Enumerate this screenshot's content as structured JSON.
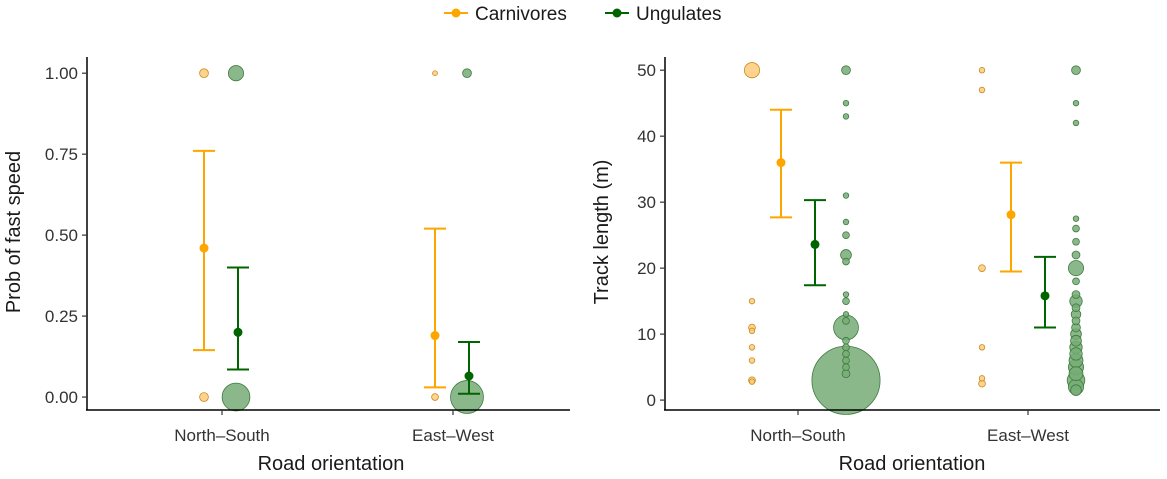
{
  "legend": {
    "position": "top-center",
    "entries": [
      {
        "label": "Carnivores",
        "color": "#FFA500"
      },
      {
        "label": "Ungulates",
        "color": "#006400"
      }
    ]
  },
  "chart_data": [
    {
      "type": "scatter",
      "title": "",
      "xlabel": "Road orientation",
      "ylabel": "Prob of fast speed",
      "categories": [
        "North–South",
        "East–West"
      ],
      "ylim": [
        -0.04,
        1.05
      ],
      "yticks": [
        0,
        0.25,
        0.5,
        0.75,
        1
      ],
      "ytick_labels": [
        "0.00",
        "0.25",
        "0.50",
        "0.75",
        "1.00"
      ],
      "grid": false,
      "series": [
        {
          "name": "Carnivores",
          "color": "#FFA500",
          "estimates": [
            {
              "category": "North–South",
              "mean": 0.46,
              "lower": 0.145,
              "upper": 0.76
            },
            {
              "category": "East–West",
              "mean": 0.19,
              "lower": 0.03,
              "upper": 0.52
            }
          ],
          "raw": [
            {
              "category": "North–South",
              "y": 1,
              "n": 1
            },
            {
              "category": "North–South",
              "y": 0,
              "n": 1
            },
            {
              "category": "East–West",
              "y": 1,
              "n": 0.3
            },
            {
              "category": "East–West",
              "y": 0,
              "n": 0.6
            }
          ]
        },
        {
          "name": "Ungulates",
          "color": "#006400",
          "estimates": [
            {
              "category": "North–South",
              "mean": 0.2,
              "lower": 0.085,
              "upper": 0.4
            },
            {
              "category": "East–West",
              "mean": 0.065,
              "lower": 0.01,
              "upper": 0.17
            }
          ],
          "raw": [
            {
              "category": "North–South",
              "y": 1,
              "n": 3
            },
            {
              "category": "North–South",
              "y": 0,
              "n": 10
            },
            {
              "category": "East–West",
              "y": 1,
              "n": 1
            },
            {
              "category": "East–West",
              "y": 0,
              "n": 14
            }
          ]
        }
      ]
    },
    {
      "type": "scatter",
      "title": "",
      "xlabel": "Road orientation",
      "ylabel": "Track length (m)",
      "categories": [
        "North–South",
        "East–West"
      ],
      "ylim": [
        -1.5,
        52
      ],
      "yticks": [
        0,
        10,
        20,
        30,
        40,
        50
      ],
      "ytick_labels": [
        "0",
        "10",
        "20",
        "30",
        "40",
        "50"
      ],
      "grid": false,
      "series": [
        {
          "name": "Carnivores",
          "color": "#FFA500",
          "estimates": [
            {
              "category": "North–South",
              "mean": 36,
              "lower": 27.7,
              "upper": 44
            },
            {
              "category": "East–West",
              "mean": 28.1,
              "lower": 19.5,
              "upper": 36
            }
          ],
          "raw": [
            {
              "category": "North–South",
              "y": 50,
              "n": 3
            },
            {
              "category": "North–South",
              "y": 15,
              "n": 0.4
            },
            {
              "category": "North–South",
              "y": 11,
              "n": 0.6
            },
            {
              "category": "North–South",
              "y": 10.5,
              "n": 0.4
            },
            {
              "category": "North–South",
              "y": 8,
              "n": 0.4
            },
            {
              "category": "North–South",
              "y": 6,
              "n": 0.4
            },
            {
              "category": "North–South",
              "y": 3,
              "n": 0.6
            },
            {
              "category": "North–South",
              "y": 2.8,
              "n": 0.4
            },
            {
              "category": "East–West",
              "y": 50,
              "n": 0.4
            },
            {
              "category": "East–West",
              "y": 47,
              "n": 0.4
            },
            {
              "category": "East–West",
              "y": 20,
              "n": 0.6
            },
            {
              "category": "East–West",
              "y": 8,
              "n": 0.4
            },
            {
              "category": "East–West",
              "y": 3.3,
              "n": 0.4
            },
            {
              "category": "East–West",
              "y": 2.5,
              "n": 0.6
            }
          ]
        },
        {
          "name": "Ungulates",
          "color": "#006400",
          "estimates": [
            {
              "category": "North–South",
              "mean": 23.6,
              "lower": 17.4,
              "upper": 30.3
            },
            {
              "category": "East–West",
              "mean": 15.8,
              "lower": 11,
              "upper": 21.7
            }
          ],
          "raw": [
            {
              "category": "North–South",
              "y": 50,
              "n": 1
            },
            {
              "category": "North–South",
              "y": 45,
              "n": 0.4
            },
            {
              "category": "North–South",
              "y": 43,
              "n": 0.4
            },
            {
              "category": "North–South",
              "y": 31,
              "n": 0.4
            },
            {
              "category": "North–South",
              "y": 27,
              "n": 0.4
            },
            {
              "category": "North–South",
              "y": 25,
              "n": 0.6
            },
            {
              "category": "North–South",
              "y": 22,
              "n": 1.5
            },
            {
              "category": "North–South",
              "y": 21,
              "n": 0.6
            },
            {
              "category": "North–South",
              "y": 16,
              "n": 0.4
            },
            {
              "category": "North–South",
              "y": 15,
              "n": 0.6
            },
            {
              "category": "North–South",
              "y": 13,
              "n": 0.4
            },
            {
              "category": "North–South",
              "y": 12,
              "n": 0.6
            },
            {
              "category": "North–South",
              "y": 11,
              "n": 8
            },
            {
              "category": "North–South",
              "y": 9,
              "n": 0.6
            },
            {
              "category": "North–South",
              "y": 8,
              "n": 0.6
            },
            {
              "category": "North–South",
              "y": 7,
              "n": 0.6
            },
            {
              "category": "North–South",
              "y": 6,
              "n": 0.6
            },
            {
              "category": "North–South",
              "y": 5,
              "n": 0.6
            },
            {
              "category": "North–South",
              "y": 4,
              "n": 0.8
            },
            {
              "category": "North–South",
              "y": 3,
              "n": 60
            },
            {
              "category": "East–West",
              "y": 50,
              "n": 1
            },
            {
              "category": "East–West",
              "y": 45,
              "n": 0.4
            },
            {
              "category": "East–West",
              "y": 42,
              "n": 0.4
            },
            {
              "category": "East–West",
              "y": 27.5,
              "n": 0.4
            },
            {
              "category": "East–West",
              "y": 26,
              "n": 0.6
            },
            {
              "category": "East–West",
              "y": 24,
              "n": 0.6
            },
            {
              "category": "East–West",
              "y": 22,
              "n": 0.8
            },
            {
              "category": "East–West",
              "y": 20,
              "n": 3
            },
            {
              "category": "East–West",
              "y": 18,
              "n": 0.6
            },
            {
              "category": "East–West",
              "y": 16,
              "n": 0.8
            },
            {
              "category": "East–West",
              "y": 15,
              "n": 2
            },
            {
              "category": "East–West",
              "y": 14,
              "n": 0.8
            },
            {
              "category": "East–West",
              "y": 13,
              "n": 1.2
            },
            {
              "category": "East–West",
              "y": 12,
              "n": 0.8
            },
            {
              "category": "East–West",
              "y": 11,
              "n": 1
            },
            {
              "category": "East–West",
              "y": 10,
              "n": 1.5
            },
            {
              "category": "East–West",
              "y": 9,
              "n": 1.5
            },
            {
              "category": "East–West",
              "y": 8,
              "n": 2
            },
            {
              "category": "East–West",
              "y": 7,
              "n": 2
            },
            {
              "category": "East–West",
              "y": 6,
              "n": 2.5
            },
            {
              "category": "East–West",
              "y": 5,
              "n": 3
            },
            {
              "category": "East–West",
              "y": 4,
              "n": 2.5
            },
            {
              "category": "East–West",
              "y": 3,
              "n": 4
            },
            {
              "category": "East–West",
              "y": 2,
              "n": 3
            },
            {
              "category": "East–West",
              "y": 1.5,
              "n": 1.5
            }
          ]
        }
      ]
    }
  ]
}
